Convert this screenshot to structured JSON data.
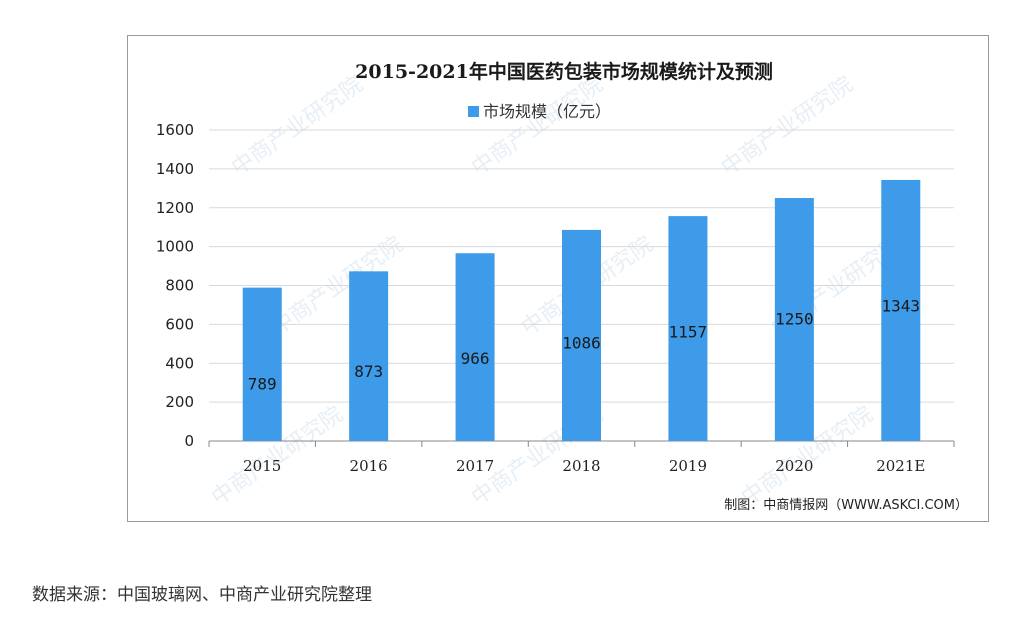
{
  "chart_data": {
    "type": "bar",
    "title": "2015-2021年中国医药包装市场规模统计及预测",
    "categories": [
      "2015",
      "2016",
      "2017",
      "2018",
      "2019",
      "2020",
      "2021E"
    ],
    "series": [
      {
        "name": "市场规模（亿元）",
        "values": [
          789,
          873,
          966,
          1086,
          1157,
          1250,
          1343
        ]
      }
    ],
    "data_labels": [
      "789",
      "873",
      "966",
      "1086",
      "1157",
      "1250",
      "1343"
    ],
    "y_ticks": [
      "0",
      "200",
      "400",
      "600",
      "800",
      "1000",
      "1200",
      "1400",
      "1600"
    ],
    "ylim": [
      0,
      1600
    ],
    "grid": true,
    "legend_position": "top",
    "bar_color": "#3d9be9",
    "credit": "制图：中商情报网（WWW.ASKCI.COM）",
    "watermark": "中商产业研究院"
  },
  "source_note": "数据来源：中国玻璃网、中商产业研究院整理"
}
